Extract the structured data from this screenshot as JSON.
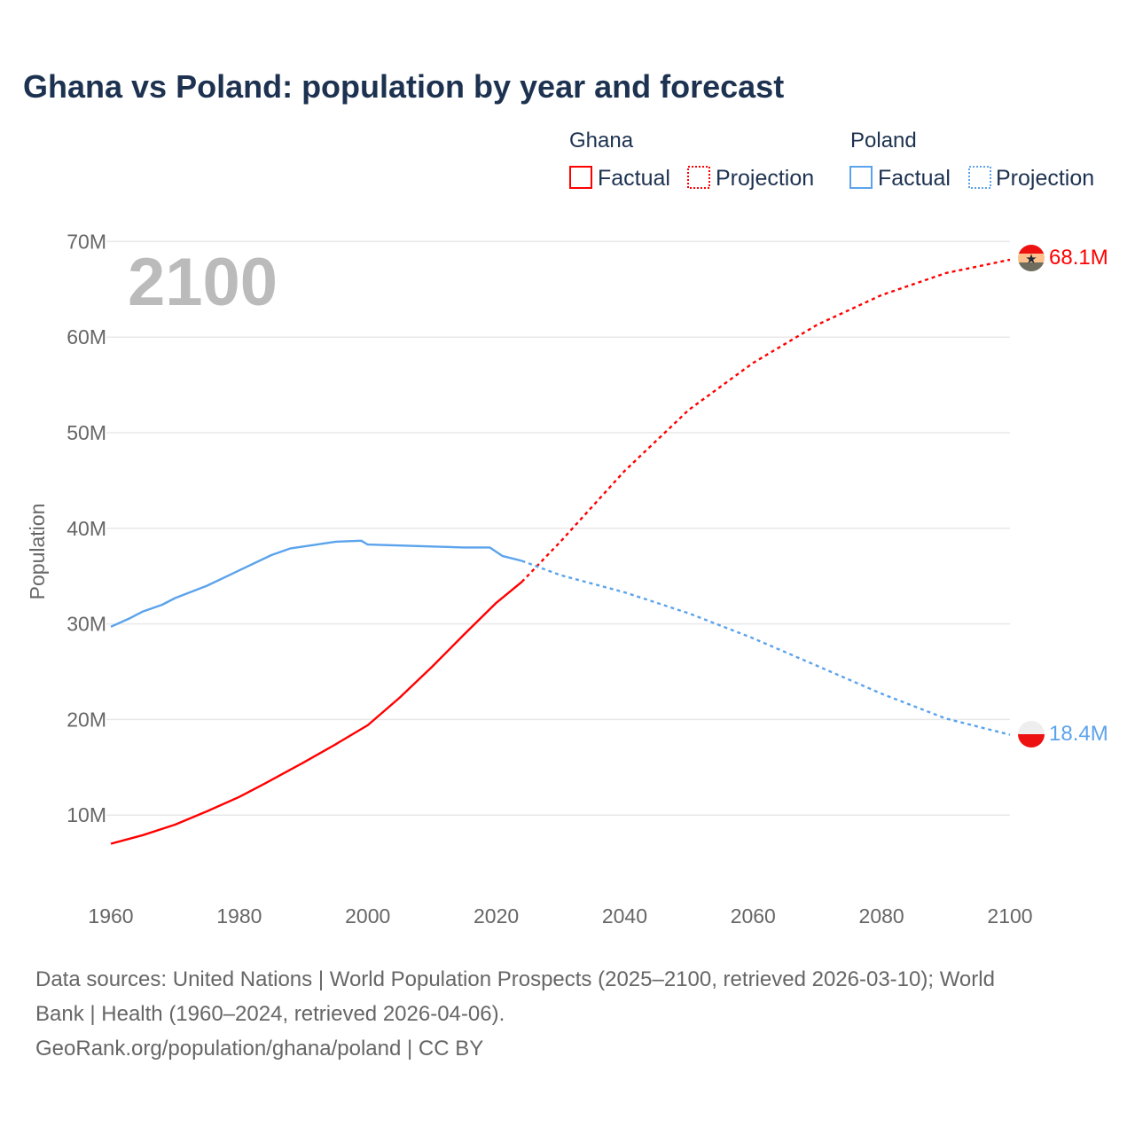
{
  "title": "Ghana vs Poland: population by year and forecast",
  "legend": {
    "groups": [
      {
        "name": "Ghana",
        "color": "#ff0000",
        "items": [
          "Factual",
          "Projection"
        ]
      },
      {
        "name": "Poland",
        "color": "#5ba3ec",
        "items": [
          "Factual",
          "Projection"
        ]
      }
    ]
  },
  "year_display": "2100",
  "end_labels": {
    "ghana": "68.1M",
    "poland": "18.4M"
  },
  "footer": {
    "line1": "Data sources: United Nations | World Population Prospects (2025–2100, retrieved 2026-03-10); World",
    "line2": "Bank | Health (1960–2024, retrieved 2026-04-06).",
    "line3": "GeoRank.org/population/ghana/poland | CC BY"
  },
  "chart_data": {
    "type": "line",
    "title": "Ghana vs Poland: population by year and forecast",
    "xlabel": "",
    "ylabel": "Population",
    "xlim": [
      1960,
      2100
    ],
    "ylim": [
      0,
      70000000
    ],
    "x_ticks": [
      "1960",
      "1980",
      "2000",
      "2020",
      "2040",
      "2060",
      "2080",
      "2100"
    ],
    "y_ticks": [
      {
        "value": 10,
        "label": "10M"
      },
      {
        "value": 20,
        "label": "20M"
      },
      {
        "value": 30,
        "label": "30M"
      },
      {
        "value": 40,
        "label": "40M"
      },
      {
        "value": 50,
        "label": "50M"
      },
      {
        "value": 60,
        "label": "60M"
      },
      {
        "value": 70,
        "label": "70M"
      }
    ],
    "units": "millions",
    "grid": true,
    "legend_position": "top-right",
    "series": [
      {
        "name": "Ghana Factual",
        "color": "#ff0000",
        "dashed": false,
        "x": [
          1960,
          1965,
          1970,
          1975,
          1980,
          1984,
          1990,
          1995,
          2000,
          2005,
          2010,
          2015,
          2020,
          2024
        ],
        "values": [
          7.0,
          7.9,
          9.0,
          10.4,
          11.9,
          13.3,
          15.5,
          17.4,
          19.4,
          22.3,
          25.5,
          28.9,
          32.2,
          34.4
        ]
      },
      {
        "name": "Ghana Projection",
        "color": "#ff0000",
        "dashed": true,
        "x": [
          2024,
          2030,
          2040,
          2050,
          2060,
          2070,
          2080,
          2090,
          2100
        ],
        "values": [
          34.4,
          38.6,
          46.0,
          52.4,
          57.3,
          61.3,
          64.4,
          66.7,
          68.1
        ]
      },
      {
        "name": "Poland Factual",
        "color": "#5ba3ec",
        "dashed": false,
        "x": [
          1960,
          1963,
          1965,
          1968,
          1970,
          1975,
          1980,
          1985,
          1988,
          1990,
          1995,
          1999,
          2000,
          2005,
          2010,
          2015,
          2019,
          2021,
          2024
        ],
        "values": [
          29.7,
          30.6,
          31.3,
          32.0,
          32.7,
          34.0,
          35.6,
          37.2,
          37.9,
          38.1,
          38.6,
          38.7,
          38.3,
          38.2,
          38.1,
          38.0,
          38.0,
          37.1,
          36.6
        ]
      },
      {
        "name": "Poland Projection",
        "color": "#5ba3ec",
        "dashed": true,
        "x": [
          2024,
          2030,
          2040,
          2050,
          2060,
          2070,
          2080,
          2090,
          2100
        ],
        "values": [
          36.6,
          35.1,
          33.3,
          31.1,
          28.5,
          25.6,
          22.7,
          20.1,
          18.4
        ]
      }
    ]
  }
}
